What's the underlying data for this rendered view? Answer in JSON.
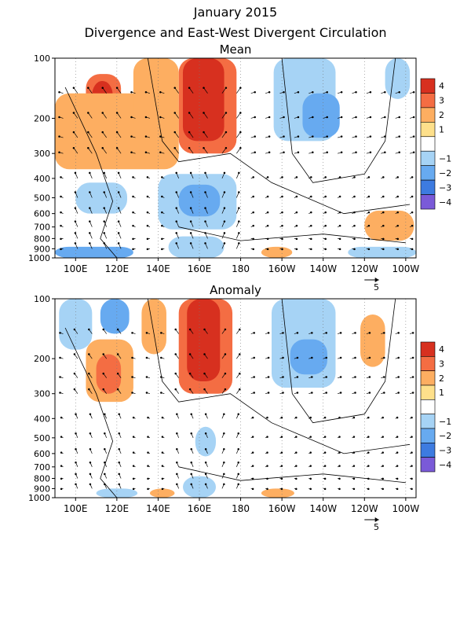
{
  "page": {
    "title": "January 2015",
    "subtitle": "Divergence and East-West Divergent Circulation"
  },
  "chart_data": [
    {
      "type": "heatmap",
      "title": "Mean",
      "xaxis": {
        "ticks": [
          "100E",
          "120E",
          "140E",
          "160E",
          "180",
          "160W",
          "140W",
          "120W",
          "100W"
        ],
        "tick_lon": [
          100,
          120,
          140,
          160,
          180,
          200,
          220,
          240,
          260
        ],
        "range_lon": [
          90,
          265
        ]
      },
      "yaxis": {
        "ticks": [
          "100",
          "200",
          "300",
          "400",
          "500",
          "600",
          "700",
          "800",
          "900",
          "1000"
        ],
        "tick_hpa": [
          100,
          200,
          300,
          400,
          500,
          600,
          700,
          800,
          900,
          1000
        ],
        "range_hpa": [
          100,
          1000
        ],
        "scale": "log"
      },
      "colorbar": {
        "labels": [
          "4",
          "3",
          "2",
          "1",
          "−1",
          "−2",
          "−3",
          "−4"
        ],
        "levels": [
          4,
          3,
          2,
          1,
          -1,
          -2,
          -3,
          -4
        ],
        "colors": [
          "#d7301f",
          "#f46d43",
          "#fdae61",
          "#fee08b",
          "#ffffff",
          "#a6d3f5",
          "#67aaf0",
          "#3d7be0",
          "#7a5ad8"
        ]
      },
      "reference_vector": {
        "label": "5",
        "value": 5
      },
      "regions": [
        {
          "lon": [
            105,
            122
          ],
          "p": [
            120,
            330
          ],
          "value": 3
        },
        {
          "lon": [
            108,
            118
          ],
          "p": [
            130,
            260
          ],
          "value": 4
        },
        {
          "lon": [
            150,
            178
          ],
          "p": [
            100,
            300
          ],
          "value": 3
        },
        {
          "lon": [
            152,
            172
          ],
          "p": [
            100,
            260
          ],
          "value": 4
        },
        {
          "lon": [
            90,
            150
          ],
          "p": [
            150,
            360
          ],
          "value": 2
        },
        {
          "lon": [
            128,
            150
          ],
          "p": [
            100,
            250
          ],
          "value": 2
        },
        {
          "lon": [
            196,
            226
          ],
          "p": [
            100,
            260
          ],
          "value": -1
        },
        {
          "lon": [
            210,
            228
          ],
          "p": [
            150,
            250
          ],
          "value": -2
        },
        {
          "lon": [
            250,
            262
          ],
          "p": [
            100,
            160
          ],
          "value": -1
        },
        {
          "lon": [
            140,
            178
          ],
          "p": [
            380,
            720
          ],
          "value": -1
        },
        {
          "lon": [
            150,
            170
          ],
          "p": [
            430,
            620
          ],
          "value": -2
        },
        {
          "lon": [
            100,
            125
          ],
          "p": [
            420,
            600
          ],
          "value": -1
        },
        {
          "lon": [
            145,
            172
          ],
          "p": [
            780,
            1000
          ],
          "value": -1
        },
        {
          "lon": [
            90,
            128
          ],
          "p": [
            880,
            1000
          ],
          "value": -2
        },
        {
          "lon": [
            240,
            264
          ],
          "p": [
            580,
            820
          ],
          "value": 2
        },
        {
          "lon": [
            190,
            205
          ],
          "p": [
            880,
            1000
          ],
          "value": 2
        },
        {
          "lon": [
            232,
            265
          ],
          "p": [
            880,
            1000
          ],
          "value": -1
        }
      ]
    },
    {
      "type": "heatmap",
      "title": "Anomaly",
      "xaxis": {
        "ticks": [
          "100E",
          "120E",
          "140E",
          "160E",
          "180",
          "160W",
          "140W",
          "120W",
          "100W"
        ],
        "tick_lon": [
          100,
          120,
          140,
          160,
          180,
          200,
          220,
          240,
          260
        ],
        "range_lon": [
          90,
          265
        ]
      },
      "yaxis": {
        "ticks": [
          "100",
          "200",
          "300",
          "400",
          "500",
          "600",
          "700",
          "800",
          "900",
          "1000"
        ],
        "tick_hpa": [
          100,
          200,
          300,
          400,
          500,
          600,
          700,
          800,
          900,
          1000
        ],
        "range_hpa": [
          100,
          1000
        ],
        "scale": "log"
      },
      "colorbar": {
        "labels": [
          "4",
          "3",
          "2",
          "1",
          "−1",
          "−2",
          "−3",
          "−4"
        ],
        "levels": [
          4,
          3,
          2,
          1,
          -1,
          -2,
          -3,
          -4
        ],
        "colors": [
          "#d7301f",
          "#f46d43",
          "#fdae61",
          "#fee08b",
          "#ffffff",
          "#a6d3f5",
          "#67aaf0",
          "#3d7be0",
          "#7a5ad8"
        ]
      },
      "reference_vector": {
        "label": "5",
        "value": 5
      },
      "regions": [
        {
          "lon": [
            150,
            176
          ],
          "p": [
            100,
            300
          ],
          "value": 3
        },
        {
          "lon": [
            154,
            170
          ],
          "p": [
            100,
            260
          ],
          "value": 4
        },
        {
          "lon": [
            105,
            128
          ],
          "p": [
            160,
            330
          ],
          "value": 2
        },
        {
          "lon": [
            110,
            122
          ],
          "p": [
            190,
            300
          ],
          "value": 3
        },
        {
          "lon": [
            92,
            108
          ],
          "p": [
            100,
            180
          ],
          "value": -1
        },
        {
          "lon": [
            112,
            126
          ],
          "p": [
            100,
            150
          ],
          "value": -2
        },
        {
          "lon": [
            132,
            144
          ],
          "p": [
            100,
            190
          ],
          "value": 2
        },
        {
          "lon": [
            195,
            226
          ],
          "p": [
            100,
            280
          ],
          "value": -1
        },
        {
          "lon": [
            204,
            222
          ],
          "p": [
            160,
            240
          ],
          "value": -2
        },
        {
          "lon": [
            238,
            250
          ],
          "p": [
            120,
            220
          ],
          "value": 2
        },
        {
          "lon": [
            158,
            168
          ],
          "p": [
            440,
            620
          ],
          "value": -1
        },
        {
          "lon": [
            152,
            168
          ],
          "p": [
            780,
            1000
          ],
          "value": -1
        },
        {
          "lon": [
            190,
            206
          ],
          "p": [
            900,
            1000
          ],
          "value": 2
        },
        {
          "lon": [
            136,
            148
          ],
          "p": [
            900,
            1000
          ],
          "value": 2
        },
        {
          "lon": [
            110,
            130
          ],
          "p": [
            900,
            1000
          ],
          "value": -1
        }
      ]
    }
  ]
}
